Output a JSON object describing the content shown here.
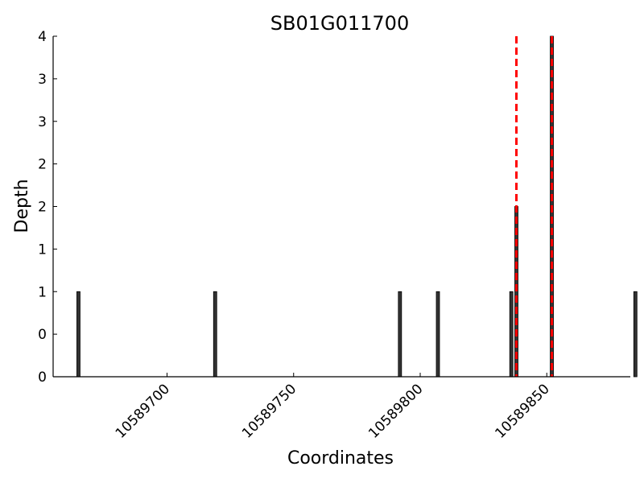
{
  "chart_data": {
    "type": "bar",
    "title": "SB01G011700",
    "xlabel": "Coordinates",
    "ylabel": "Depth",
    "xlim": [
      10589655,
      10589883
    ],
    "ylim": [
      0,
      4
    ],
    "x_ticks": [
      10589700,
      10589750,
      10589800,
      10589850
    ],
    "x_tick_labels": [
      "10589700",
      "10589750",
      "10589800",
      "10589850"
    ],
    "y_ticks": [
      0,
      0.5,
      1,
      1.5,
      2,
      2.5,
      3,
      3.5,
      4
    ],
    "y_tick_labels": [
      "0",
      "0",
      "1",
      "1",
      "2",
      "2",
      "3",
      "3",
      "4"
    ],
    "grid": false,
    "bar_color": "#333333",
    "series": [
      {
        "x": [
          10589665,
          10589719,
          10589792,
          10589807,
          10589836,
          10589838,
          10589852,
          10589885
        ],
        "values": [
          1,
          1,
          1,
          1,
          1,
          2,
          4,
          1
        ]
      }
    ],
    "reference_lines": {
      "x": [
        10589838,
        10589852
      ],
      "color": "#ff0000",
      "style": "dashed"
    }
  }
}
